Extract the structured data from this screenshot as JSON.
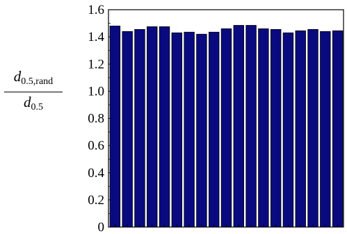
{
  "chart_data": {
    "type": "bar",
    "ylabel": {
      "numerator_var": "d",
      "numerator_sub": "0.5,rand",
      "denominator_var": "d",
      "denominator_sub": "0.5"
    },
    "ylim": [
      0,
      1.6
    ],
    "yticks": [
      "0",
      "0.2",
      "0.4",
      "0.6",
      "0.8",
      "1.0",
      "1.2",
      "1.4",
      "1.6"
    ],
    "values": [
      1.48,
      1.44,
      1.455,
      1.475,
      1.475,
      1.43,
      1.435,
      1.42,
      1.435,
      1.46,
      1.485,
      1.485,
      1.46,
      1.455,
      1.43,
      1.445,
      1.455,
      1.44,
      1.445
    ],
    "xticklabels": "none",
    "grid": false,
    "bar_color": "#0a0a80",
    "bar_edge": "#000000"
  }
}
